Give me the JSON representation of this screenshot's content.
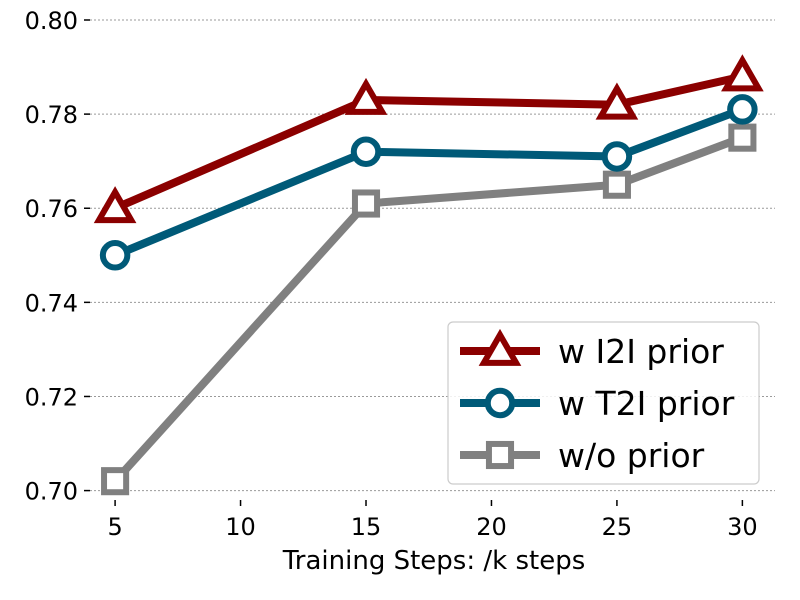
{
  "chart_data": {
    "type": "line",
    "title": "",
    "xlabel": "Training Steps: /k steps",
    "ylabel": "",
    "x": [
      5,
      15,
      25,
      30
    ],
    "xticks": [
      5,
      10,
      15,
      20,
      25,
      30
    ],
    "yticks": [
      0.7,
      0.72,
      0.74,
      0.76,
      0.78,
      0.8
    ],
    "xlim": [
      4,
      31.3
    ],
    "ylim": [
      0.698,
      0.8
    ],
    "grid": "y-dotted",
    "legend_position": "lower-right",
    "series": [
      {
        "name": "w I2I prior",
        "values": [
          0.76,
          0.783,
          0.782,
          0.788
        ],
        "color": "#8b0000",
        "marker": "triangle"
      },
      {
        "name": "w T2I prior",
        "values": [
          0.75,
          0.772,
          0.771,
          0.781
        ],
        "color": "#005a78",
        "marker": "circle"
      },
      {
        "name": "w/o prior",
        "values": [
          0.702,
          0.761,
          0.765,
          0.775
        ],
        "color": "#808080",
        "marker": "square"
      }
    ]
  }
}
